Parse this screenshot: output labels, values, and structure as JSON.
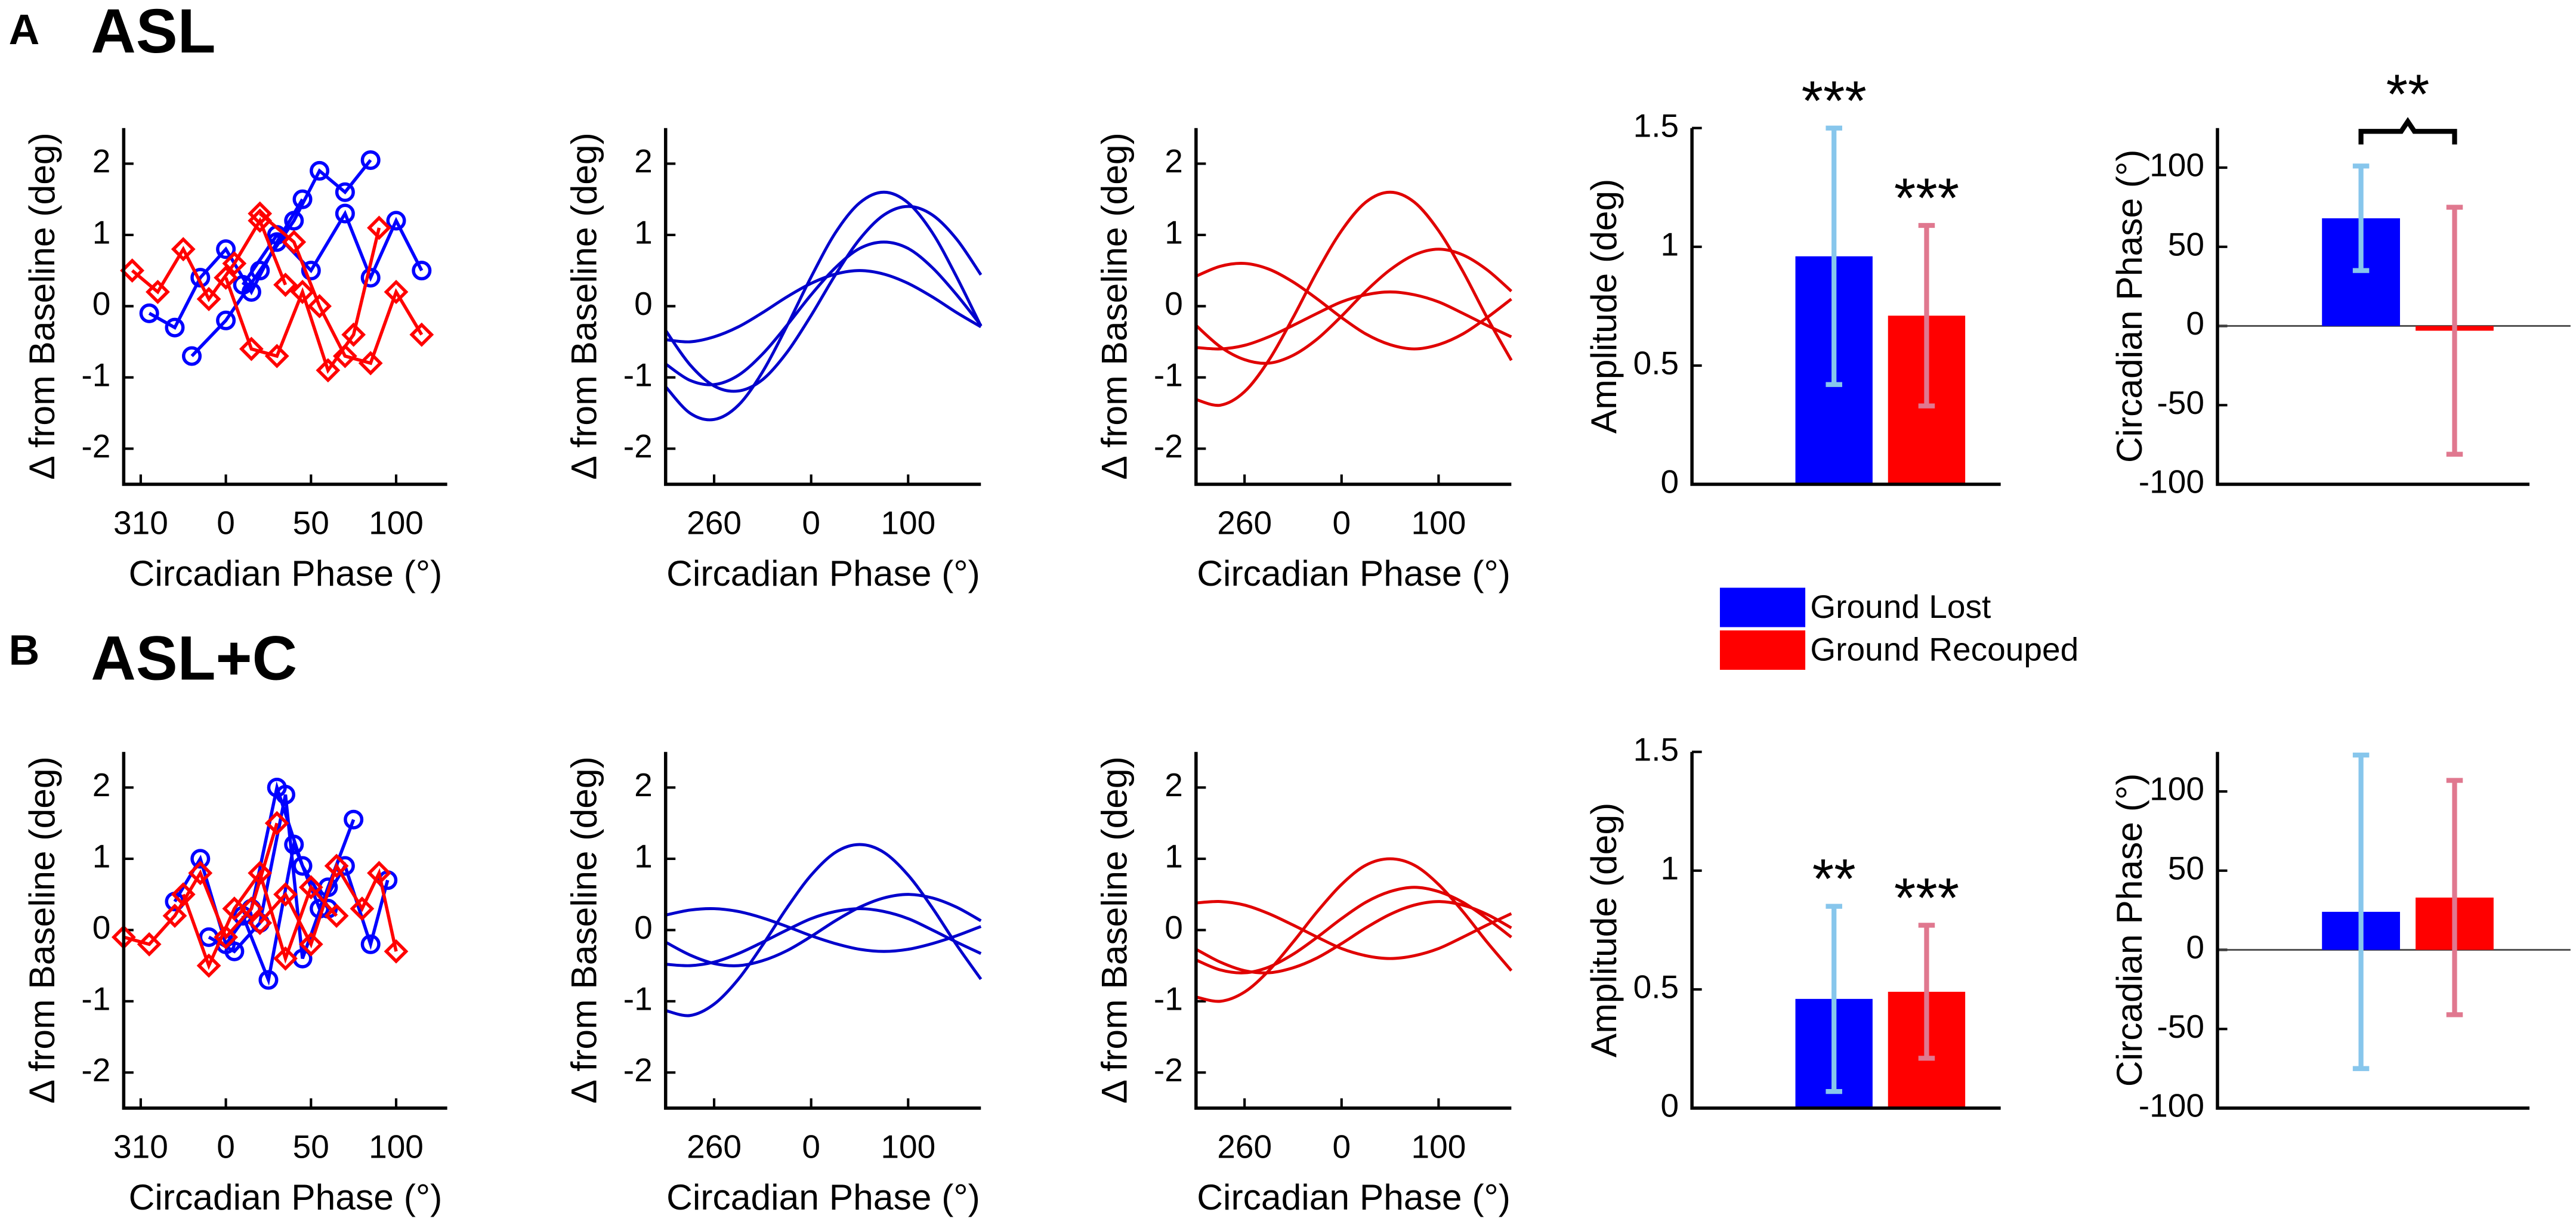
{
  "panels": [
    {
      "letter": "A",
      "title": "ASL"
    },
    {
      "letter": "B",
      "title": "ASL+C"
    }
  ],
  "legend": [
    {
      "name": "Ground Lost",
      "color": "#0000ff"
    },
    {
      "name": "Ground Recouped",
      "color": "#ff0000"
    }
  ],
  "chart_data": [
    {
      "type": "scatter",
      "xlabel": "Circadian Phase (°)",
      "ylabel": "Δ from Baseline (deg)",
      "xlim": [
        -60,
        130
      ],
      "xticks": [
        {
          "value": -50,
          "label": "310"
        },
        0,
        50,
        100
      ],
      "ylim": [
        -2.5,
        2.5
      ],
      "yticks": [
        -2,
        -1,
        0,
        1,
        2
      ],
      "series": [
        {
          "color": "#0000ff",
          "marker": "circle",
          "x": [
            -45,
            -30,
            -15,
            0,
            15,
            30,
            45
          ],
          "values": [
            -0.1,
            -0.3,
            0.4,
            0.8,
            0.2,
            0.9,
            1.5
          ]
        },
        {
          "color": "#0000ff",
          "marker": "circle",
          "x": [
            -20,
            0,
            20,
            40,
            55,
            70,
            85
          ],
          "values": [
            -0.7,
            -0.2,
            0.5,
            1.2,
            1.9,
            1.6,
            2.05
          ]
        },
        {
          "color": "#0000ff",
          "marker": "circle",
          "x": [
            10,
            30,
            50,
            70,
            85,
            100,
            115
          ],
          "values": [
            0.3,
            1.0,
            0.5,
            1.3,
            0.4,
            1.2,
            0.5
          ]
        },
        {
          "color": "#ff0000",
          "marker": "diamond",
          "x": [
            -55,
            -40,
            -25,
            -10,
            5,
            20,
            35
          ],
          "values": [
            0.5,
            0.2,
            0.8,
            0.1,
            0.6,
            1.2,
            0.3
          ]
        },
        {
          "color": "#ff0000",
          "marker": "diamond",
          "x": [
            0,
            15,
            30,
            45,
            60,
            75,
            90
          ],
          "values": [
            0.4,
            -0.6,
            -0.7,
            0.2,
            -0.9,
            -0.4,
            1.1
          ]
        },
        {
          "color": "#ff0000",
          "marker": "diamond",
          "x": [
            20,
            40,
            55,
            70,
            85,
            100,
            115
          ],
          "values": [
            1.3,
            0.9,
            0.0,
            -0.7,
            -0.8,
            0.2,
            -0.4
          ]
        }
      ]
    },
    {
      "type": "line",
      "xlabel": "Circadian Phase (°)",
      "ylabel": "Δ from Baseline (deg)",
      "xlim": [
        -150,
        175
      ],
      "xticks": [
        {
          "value": -100,
          "label": "260"
        },
        0,
        100
      ],
      "ylim": [
        -2.5,
        2.5
      ],
      "yticks": [
        -2,
        -1,
        0,
        1,
        2
      ],
      "x": [
        -150,
        -125,
        -100,
        -75,
        -50,
        -25,
        0,
        25,
        50,
        75,
        100,
        125,
        150,
        175
      ],
      "series": [
        {
          "color": "#0000cc",
          "values": [
            -1.13,
            -1.5,
            -1.59,
            -1.39,
            -0.92,
            -0.28,
            0.41,
            1.03,
            1.45,
            1.6,
            1.45,
            1.03,
            0.41,
            -0.28
          ]
        },
        {
          "color": "#0000cc",
          "values": [
            -0.34,
            -0.82,
            -1.12,
            -1.19,
            -1.03,
            -0.65,
            -0.13,
            0.44,
            0.94,
            1.28,
            1.4,
            1.28,
            0.94,
            0.44
          ]
        },
        {
          "color": "#0000cc",
          "values": [
            -0.47,
            -0.5,
            -0.43,
            -0.29,
            -0.09,
            0.13,
            0.32,
            0.45,
            0.5,
            0.45,
            0.32,
            0.13,
            -0.09,
            -0.29
          ]
        },
        {
          "color": "#0000cc",
          "values": [
            -0.81,
            -1.04,
            -1.1,
            -0.97,
            -0.67,
            -0.27,
            0.16,
            0.54,
            0.81,
            0.9,
            0.81,
            0.54,
            0.16,
            -0.27
          ]
        }
      ]
    },
    {
      "type": "line",
      "xlabel": "Circadian Phase (°)",
      "ylabel": "Δ from Baseline (deg)",
      "xlim": [
        -150,
        175
      ],
      "xticks": [
        {
          "value": -100,
          "label": "260"
        },
        0,
        100
      ],
      "ylim": [
        -2.5,
        2.5
      ],
      "yticks": [
        -2,
        -1,
        0,
        1,
        2
      ],
      "x": [
        -150,
        -125,
        -100,
        -75,
        -50,
        -25,
        0,
        25,
        50,
        75,
        100,
        125,
        150,
        175
      ],
      "series": [
        {
          "color": "#e00000",
          "values": [
            -1.31,
            -1.39,
            -1.2,
            -0.76,
            -0.16,
            0.49,
            1.06,
            1.46,
            1.6,
            1.46,
            1.06,
            0.49,
            -0.16,
            -0.76
          ]
        },
        {
          "color": "#e00000",
          "values": [
            -0.27,
            -0.57,
            -0.75,
            -0.8,
            -0.69,
            -0.46,
            -0.14,
            0.21,
            0.51,
            0.72,
            0.8,
            0.72,
            0.51,
            0.21
          ]
        },
        {
          "color": "#e00000",
          "values": [
            0.42,
            0.56,
            0.6,
            0.52,
            0.34,
            0.1,
            -0.16,
            -0.39,
            -0.54,
            -0.6,
            -0.54,
            -0.39,
            -0.16,
            0.1
          ]
        },
        {
          "color": "#e00000",
          "values": [
            -0.58,
            -0.6,
            -0.55,
            -0.43,
            -0.27,
            -0.1,
            0.06,
            0.16,
            0.2,
            0.16,
            0.06,
            -0.1,
            -0.27,
            -0.43
          ]
        }
      ]
    },
    {
      "type": "bar",
      "ylabel": "Amplitude (deg)",
      "ylim": [
        0,
        1.5
      ],
      "yticks": [
        0,
        0.5,
        1,
        1.5
      ],
      "colors": [
        "#0000ff",
        "#ff0000"
      ],
      "error_colors": [
        "#87c6ec",
        "#e0788f"
      ],
      "values": [
        0.96,
        0.71
      ],
      "errors": [
        0.54,
        0.38
      ],
      "annotations": [
        "***",
        "***"
      ]
    },
    {
      "type": "bar",
      "ylabel": "Circadian Phase (°)",
      "ylim": [
        -100,
        125
      ],
      "yticks": [
        -100,
        -50,
        0,
        50,
        100
      ],
      "colors": [
        "#0000ff",
        "#ff0000"
      ],
      "error_colors": [
        "#87c6ec",
        "#e0788f"
      ],
      "values": [
        68,
        -3
      ],
      "errors": [
        33,
        78
      ],
      "bracket_label": "**"
    },
    {
      "type": "scatter",
      "xlabel": "Circadian Phase (°)",
      "ylabel": "Δ from Baseline (deg)",
      "xlim": [
        -60,
        130
      ],
      "xticks": [
        {
          "value": -50,
          "label": "310"
        },
        0,
        50,
        100
      ],
      "ylim": [
        -2.5,
        2.5
      ],
      "yticks": [
        -2,
        -1,
        0,
        1,
        2
      ],
      "series": [
        {
          "color": "#0000ff",
          "marker": "circle",
          "x": [
            -30,
            -15,
            0,
            15,
            30,
            45,
            60
          ],
          "values": [
            0.4,
            1.0,
            -0.2,
            0.3,
            2.0,
            0.9,
            0.3
          ]
        },
        {
          "color": "#0000ff",
          "marker": "circle",
          "x": [
            -10,
            5,
            20,
            35,
            45,
            60,
            75
          ],
          "values": [
            -0.1,
            -0.3,
            0.1,
            1.9,
            -0.4,
            0.6,
            1.55
          ]
        },
        {
          "color": "#0000ff",
          "marker": "circle",
          "x": [
            10,
            25,
            40,
            55,
            70,
            85,
            95
          ],
          "values": [
            0.2,
            -0.7,
            1.2,
            0.3,
            0.9,
            -0.2,
            0.7
          ]
        },
        {
          "color": "#ff0000",
          "marker": "diamond",
          "x": [
            -60,
            -45,
            -30,
            -15,
            0,
            15,
            30
          ],
          "values": [
            -0.1,
            -0.2,
            0.2,
            0.8,
            -0.1,
            0.3,
            1.5
          ]
        },
        {
          "color": "#ff0000",
          "marker": "diamond",
          "x": [
            -25,
            -10,
            5,
            20,
            35,
            50,
            65
          ],
          "values": [
            0.5,
            -0.5,
            0.3,
            0.8,
            -0.4,
            0.6,
            0.2
          ]
        },
        {
          "color": "#ff0000",
          "marker": "diamond",
          "x": [
            20,
            35,
            50,
            65,
            80,
            90,
            100
          ],
          "values": [
            0.1,
            0.5,
            -0.2,
            0.9,
            0.3,
            0.8,
            -0.3
          ]
        }
      ]
    },
    {
      "type": "line",
      "xlabel": "Circadian Phase (°)",
      "ylabel": "Δ from Baseline (deg)",
      "xlim": [
        -150,
        175
      ],
      "xticks": [
        {
          "value": -100,
          "label": "260"
        },
        0,
        100
      ],
      "ylim": [
        -2.5,
        2.5
      ],
      "yticks": [
        -2,
        -1,
        0,
        1,
        2
      ],
      "x": [
        -150,
        -125,
        -100,
        -75,
        -50,
        -25,
        0,
        25,
        50,
        75,
        100,
        125,
        150,
        175
      ],
      "series": [
        {
          "color": "#0000cc",
          "values": [
            -1.13,
            -1.2,
            -1.04,
            -0.69,
            -0.21,
            0.31,
            0.77,
            1.09,
            1.2,
            1.09,
            0.77,
            0.31,
            -0.21,
            -0.69
          ]
        },
        {
          "color": "#0000cc",
          "values": [
            -0.17,
            -0.35,
            -0.47,
            -0.5,
            -0.43,
            -0.29,
            -0.09,
            0.13,
            0.32,
            0.45,
            0.5,
            0.45,
            0.32,
            0.13
          ]
        },
        {
          "color": "#0000cc",
          "values": [
            0.21,
            0.28,
            0.3,
            0.26,
            0.17,
            0.05,
            -0.08,
            -0.19,
            -0.27,
            -0.3,
            -0.27,
            -0.19,
            -0.08,
            0.05
          ]
        },
        {
          "color": "#0000cc",
          "values": [
            -0.48,
            -0.5,
            -0.45,
            -0.33,
            -0.17,
            0,
            0.16,
            0.26,
            0.3,
            0.26,
            0.16,
            0,
            -0.17,
            -0.33
          ]
        }
      ]
    },
    {
      "type": "line",
      "xlabel": "Circadian Phase (°)",
      "ylabel": "Δ from Baseline (deg)",
      "xlim": [
        -150,
        175
      ],
      "xticks": [
        {
          "value": -100,
          "label": "260"
        },
        0,
        100
      ],
      "ylim": [
        -2.5,
        2.5
      ],
      "yticks": [
        -2,
        -1,
        0,
        1,
        2
      ],
      "x": [
        -150,
        -125,
        -100,
        -75,
        -50,
        -25,
        0,
        25,
        50,
        75,
        100,
        125,
        150,
        175
      ],
      "series": [
        {
          "color": "#e00000",
          "values": [
            -0.94,
            -1,
            -0.87,
            -0.57,
            -0.17,
            0.26,
            0.64,
            0.91,
            1,
            0.91,
            0.64,
            0.26,
            -0.17,
            -0.57
          ]
        },
        {
          "color": "#e00000",
          "values": [
            -0.42,
            -0.56,
            -0.6,
            -0.52,
            -0.34,
            -0.1,
            0.16,
            0.39,
            0.54,
            0.6,
            0.54,
            0.39,
            0.16,
            -0.1
          ]
        },
        {
          "color": "#e00000",
          "values": [
            0.38,
            0.4,
            0.35,
            0.23,
            0.07,
            -0.1,
            -0.26,
            -0.36,
            -0.4,
            -0.36,
            -0.26,
            -0.1,
            0.07,
            0.23
          ]
        },
        {
          "color": "#e00000",
          "values": [
            -0.27,
            -0.45,
            -0.57,
            -0.6,
            -0.53,
            -0.39,
            -0.19,
            0.03,
            0.22,
            0.35,
            0.4,
            0.35,
            0.22,
            0.03
          ]
        }
      ]
    },
    {
      "type": "bar",
      "ylabel": "Amplitude (deg)",
      "ylim": [
        0,
        1.5
      ],
      "yticks": [
        0,
        0.5,
        1,
        1.5
      ],
      "colors": [
        "#0000ff",
        "#ff0000"
      ],
      "error_colors": [
        "#87c6ec",
        "#e0788f"
      ],
      "values": [
        0.46,
        0.49
      ],
      "errors": [
        0.39,
        0.28
      ],
      "annotations": [
        "**",
        "***"
      ]
    },
    {
      "type": "bar",
      "ylabel": "Circadian Phase (°)",
      "ylim": [
        -100,
        125
      ],
      "yticks": [
        -100,
        -50,
        0,
        50,
        100
      ],
      "colors": [
        "#0000ff",
        "#ff0000"
      ],
      "error_colors": [
        "#87c6ec",
        "#e0788f"
      ],
      "values": [
        24,
        33
      ],
      "errors": [
        99,
        74
      ]
    }
  ]
}
